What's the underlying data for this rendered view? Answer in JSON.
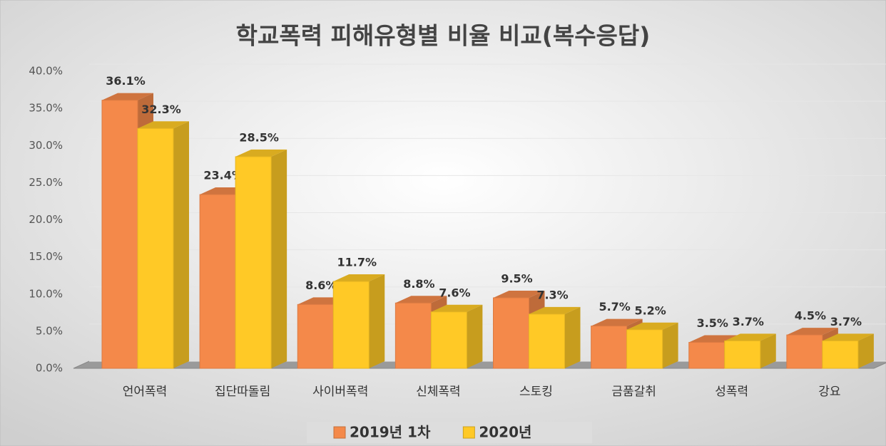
{
  "chart_data": {
    "type": "bar3d",
    "title": "학교폭력 피해유형별 비율 비교(복수응답)",
    "categories": [
      "언어폭력",
      "집단따돌림",
      "사이버폭력",
      "신체폭력",
      "스토킹",
      "금품갈취",
      "성폭력",
      "강요"
    ],
    "series": [
      {
        "name": "2019년 1차",
        "color": "#f4894a",
        "values": [
          36.1,
          23.4,
          8.6,
          8.8,
          9.5,
          5.7,
          3.5,
          4.5
        ],
        "value_labels": [
          "36.1%",
          "23.4%",
          "8.6%",
          "8.8%",
          "9.5%",
          "5.7%",
          "3.5%",
          "4.5%"
        ]
      },
      {
        "name": "2020년",
        "color": "#ffc926",
        "values": [
          32.3,
          28.5,
          11.7,
          7.6,
          7.3,
          5.2,
          3.7,
          3.7
        ],
        "value_labels": [
          "32.3%",
          "28.5%",
          "11.7%",
          "7.6%",
          "7.3%",
          "5.2%",
          "3.7%",
          "3.7%"
        ]
      }
    ],
    "ylim": [
      0,
      40
    ],
    "yticks": [
      {
        "value": 0,
        "label": "0.0%"
      },
      {
        "value": 5,
        "label": "5.0%"
      },
      {
        "value": 10,
        "label": "10.0%"
      },
      {
        "value": 15,
        "label": "15.0%"
      },
      {
        "value": 20,
        "label": "20.0%"
      },
      {
        "value": 25,
        "label": "25.0%"
      },
      {
        "value": 30,
        "label": "30.0%"
      },
      {
        "value": 35,
        "label": "35.0%"
      },
      {
        "value": 40,
        "label": "40.0%"
      }
    ],
    "grid": true,
    "legend": "bottom"
  }
}
